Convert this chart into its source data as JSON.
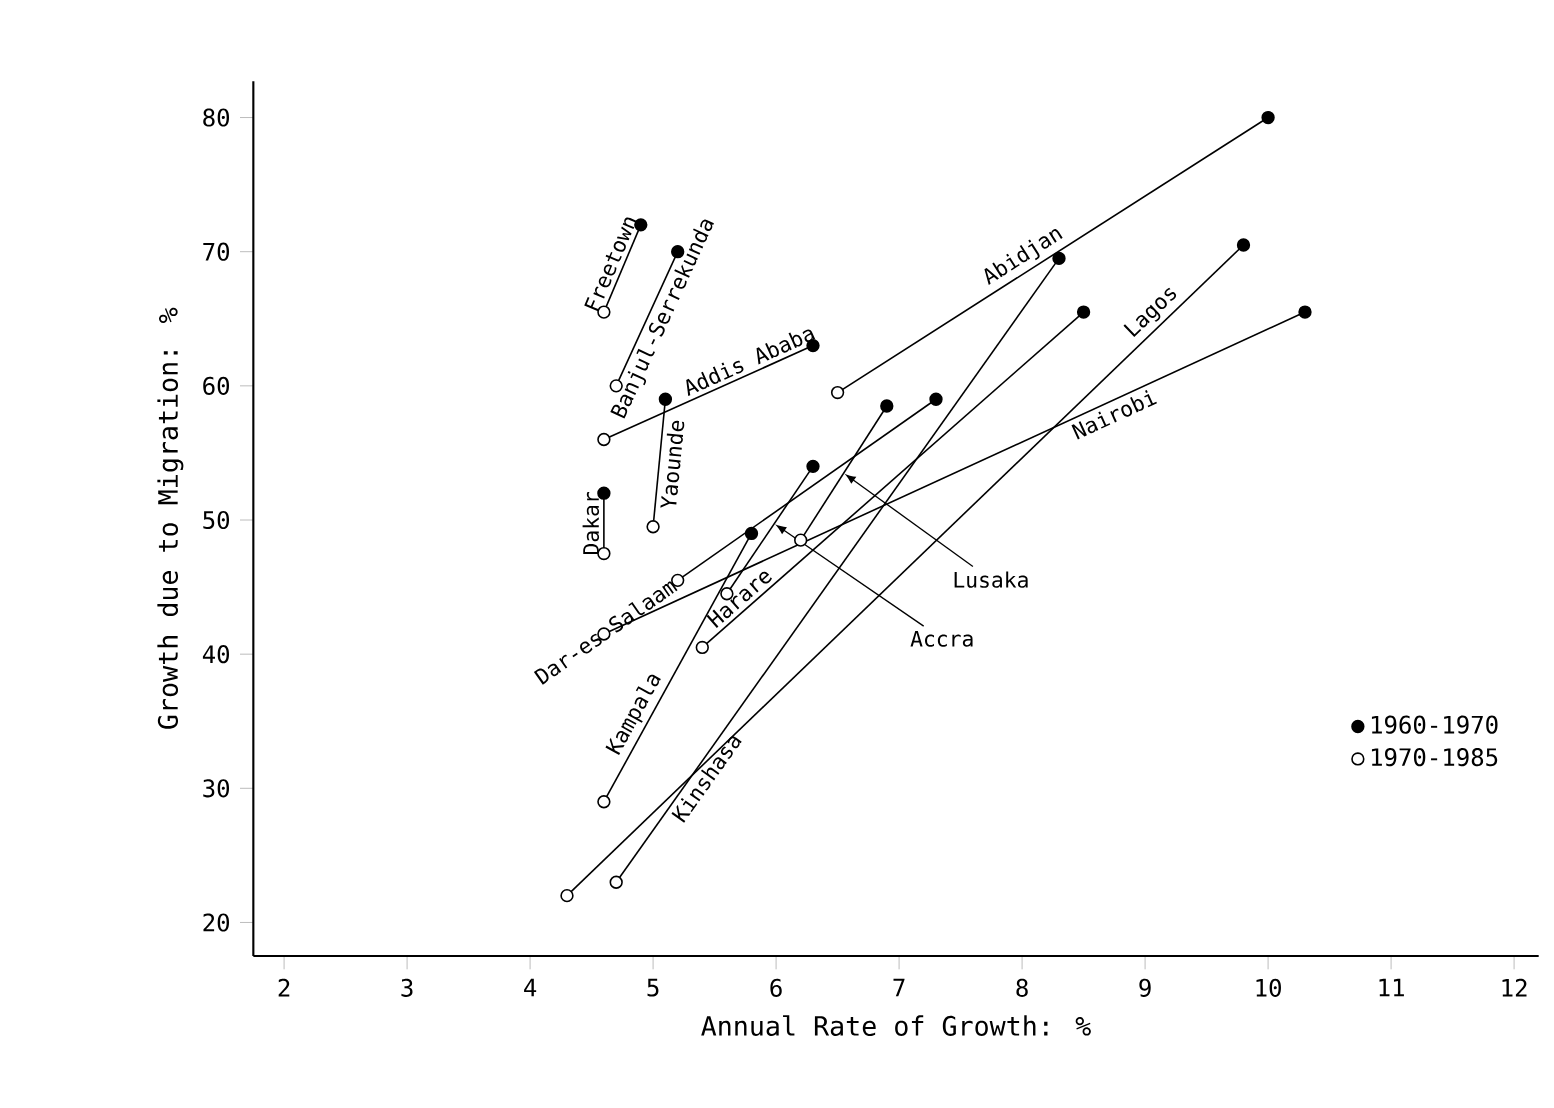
{
  "chart_data": {
    "type": "scatter",
    "xlabel": "Annual Rate of Growth: %",
    "ylabel": "Growth due to Migration: %",
    "xlim": [
      1.75,
      12.2
    ],
    "ylim": [
      17.5,
      82.7
    ],
    "xticks": [
      2,
      3,
      4,
      5,
      6,
      7,
      8,
      9,
      10,
      11,
      12
    ],
    "yticks": [
      20,
      30,
      40,
      50,
      60,
      70,
      80
    ],
    "grid": false,
    "legend": "bottom right",
    "series": [
      {
        "type": "line",
        "name": "Freetown",
        "color": "#000000",
        "x": [
          4.6,
          4.9
        ],
        "values": [
          65.5,
          72
        ]
      },
      {
        "type": "line",
        "name": "Banjul-Serrekunda",
        "color": "#000000",
        "x": [
          4.7,
          5.2
        ],
        "values": [
          60,
          70
        ]
      },
      {
        "type": "line",
        "name": "Addis Ababa",
        "color": "#000000",
        "x": [
          4.6,
          6.3
        ],
        "values": [
          56,
          63
        ]
      },
      {
        "type": "line",
        "name": "Yaounde",
        "color": "#000000",
        "x": [
          5.0,
          5.1
        ],
        "values": [
          49.5,
          59
        ]
      },
      {
        "type": "line",
        "name": "Dakar",
        "color": "#000000",
        "x": [
          4.6,
          4.6
        ],
        "values": [
          47.5,
          52
        ]
      },
      {
        "type": "line",
        "name": "Abidjan",
        "color": "#000000",
        "x": [
          6.5,
          10.0
        ],
        "values": [
          59.5,
          80
        ]
      },
      {
        "type": "line",
        "name": "Lagos",
        "color": "#000000",
        "x": [
          4.3,
          9.8
        ],
        "values": [
          22,
          70.5
        ]
      },
      {
        "type": "line",
        "name": "Nairobi",
        "color": "#000000",
        "x": [
          4.6,
          10.3
        ],
        "values": [
          41.5,
          65.5
        ]
      },
      {
        "type": "line",
        "name": "Dar-es-Salaam",
        "color": "#000000",
        "x": [
          5.2,
          7.3
        ],
        "values": [
          45.5,
          59
        ]
      },
      {
        "type": "line",
        "name": "Kampala",
        "color": "#000000",
        "x": [
          4.6,
          5.8
        ],
        "values": [
          29,
          49
        ]
      },
      {
        "type": "line",
        "name": "Accra",
        "color": "#000000",
        "x": [
          5.6,
          6.3
        ],
        "values": [
          44.5,
          54
        ]
      },
      {
        "type": "line",
        "name": "Lusaka",
        "color": "#000000",
        "x": [
          6.2,
          6.9
        ],
        "values": [
          48.5,
          58.5
        ]
      },
      {
        "type": "line",
        "name": "Harare",
        "color": "#000000",
        "x": [
          5.4,
          8.5
        ],
        "values": [
          40.5,
          65.5
        ]
      },
      {
        "type": "line",
        "name": "Kinshasa",
        "color": "#000000",
        "x": [
          4.7,
          8.3
        ],
        "values": [
          23,
          69.5
        ]
      },
      {
        "name": "1960-1970",
        "marker": "circle",
        "color": "#000000",
        "x": [
          4.9,
          5.2,
          6.3,
          5.1,
          4.6,
          10.0,
          9.8,
          10.3,
          7.3,
          5.8,
          6.3,
          6.9,
          8.5,
          8.3
        ],
        "values": [
          72,
          70,
          63,
          59,
          52,
          80,
          70.5,
          65.5,
          59,
          49,
          54,
          58.5,
          65.5,
          69.5
        ]
      },
      {
        "name": "1970-1985",
        "marker": "circle",
        "color": "#ffffff",
        "x": [
          4.6,
          4.7,
          4.6,
          5.0,
          4.6,
          6.5,
          4.3,
          4.6,
          5.2,
          4.6,
          5.6,
          6.2,
          5.4,
          4.7
        ],
        "values": [
          65.5,
          60,
          56,
          49.5,
          47.5,
          59.5,
          22,
          41.5,
          45.5,
          29,
          44.5,
          48.5,
          40.5,
          23
        ]
      }
    ]
  }
}
